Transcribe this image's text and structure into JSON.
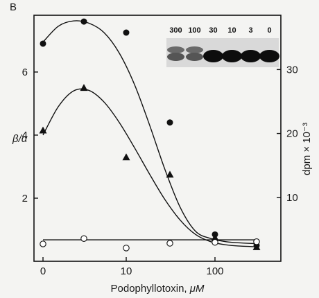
{
  "panel_label": "B",
  "chart_data": {
    "type": "line",
    "xlabel_prefix": "Podophyllotoxin, ",
    "xlabel_unit": "μM",
    "ylabel_left": "β/α",
    "ylabel_right": "dpm × 10⁻³",
    "x_ticks": [
      "0",
      "10",
      "100"
    ],
    "y_left_ticks": [
      "2",
      "4",
      "6"
    ],
    "y_right_ticks": [
      "10",
      "20",
      "30"
    ],
    "ylim_left": [
      0,
      7.8
    ],
    "ylim_right": [
      0,
      38.5
    ],
    "x_categories_pos": [
      "0",
      "3",
      "10",
      "30",
      "100",
      "300"
    ],
    "series": [
      {
        "marker": "filled-circle",
        "axis": "left",
        "points": [
          {
            "x": "0",
            "y": 6.9
          },
          {
            "x": "3",
            "y": 7.6
          },
          {
            "x": "10",
            "y": 7.25
          },
          {
            "x": "30",
            "y": 4.4
          },
          {
            "x": "100",
            "y": 0.85
          },
          {
            "x": "300",
            "y": 0.5
          }
        ],
        "curve": [
          6.95,
          7.45,
          7.62,
          7.55,
          7.25,
          6.6,
          5.6,
          4.3,
          2.9,
          1.7,
          0.95,
          0.72,
          0.62,
          0.58,
          0.56
        ]
      },
      {
        "marker": "filled-triangle",
        "axis": "left",
        "points": [
          {
            "x": "0",
            "y": 4.15
          },
          {
            "x": "3",
            "y": 5.5
          },
          {
            "x": "10",
            "y": 3.3
          },
          {
            "x": "30",
            "y": 2.75
          },
          {
            "x": "100",
            "y": 0.75
          },
          {
            "x": "300",
            "y": 0.45
          }
        ],
        "curve": [
          4.0,
          4.9,
          5.4,
          5.42,
          5.05,
          4.4,
          3.6,
          2.75,
          1.95,
          1.3,
          0.85,
          0.62,
          0.52,
          0.48,
          0.46
        ]
      },
      {
        "marker": "open-circle",
        "axis": "left",
        "points": [
          {
            "x": "0",
            "y": 0.55
          },
          {
            "x": "3",
            "y": 0.72
          },
          {
            "x": "10",
            "y": 0.42
          },
          {
            "x": "30",
            "y": 0.57
          },
          {
            "x": "100",
            "y": 0.6
          },
          {
            "x": "300",
            "y": 0.62
          }
        ],
        "curve": [
          0.68,
          0.68,
          0.68,
          0.68,
          0.68,
          0.68,
          0.68,
          0.68,
          0.68,
          0.68,
          0.68,
          0.68,
          0.68,
          0.68,
          0.68
        ]
      }
    ],
    "inset_gel": {
      "lane_labels": [
        "300",
        "100",
        "30",
        "10",
        "3",
        "0"
      ]
    }
  }
}
